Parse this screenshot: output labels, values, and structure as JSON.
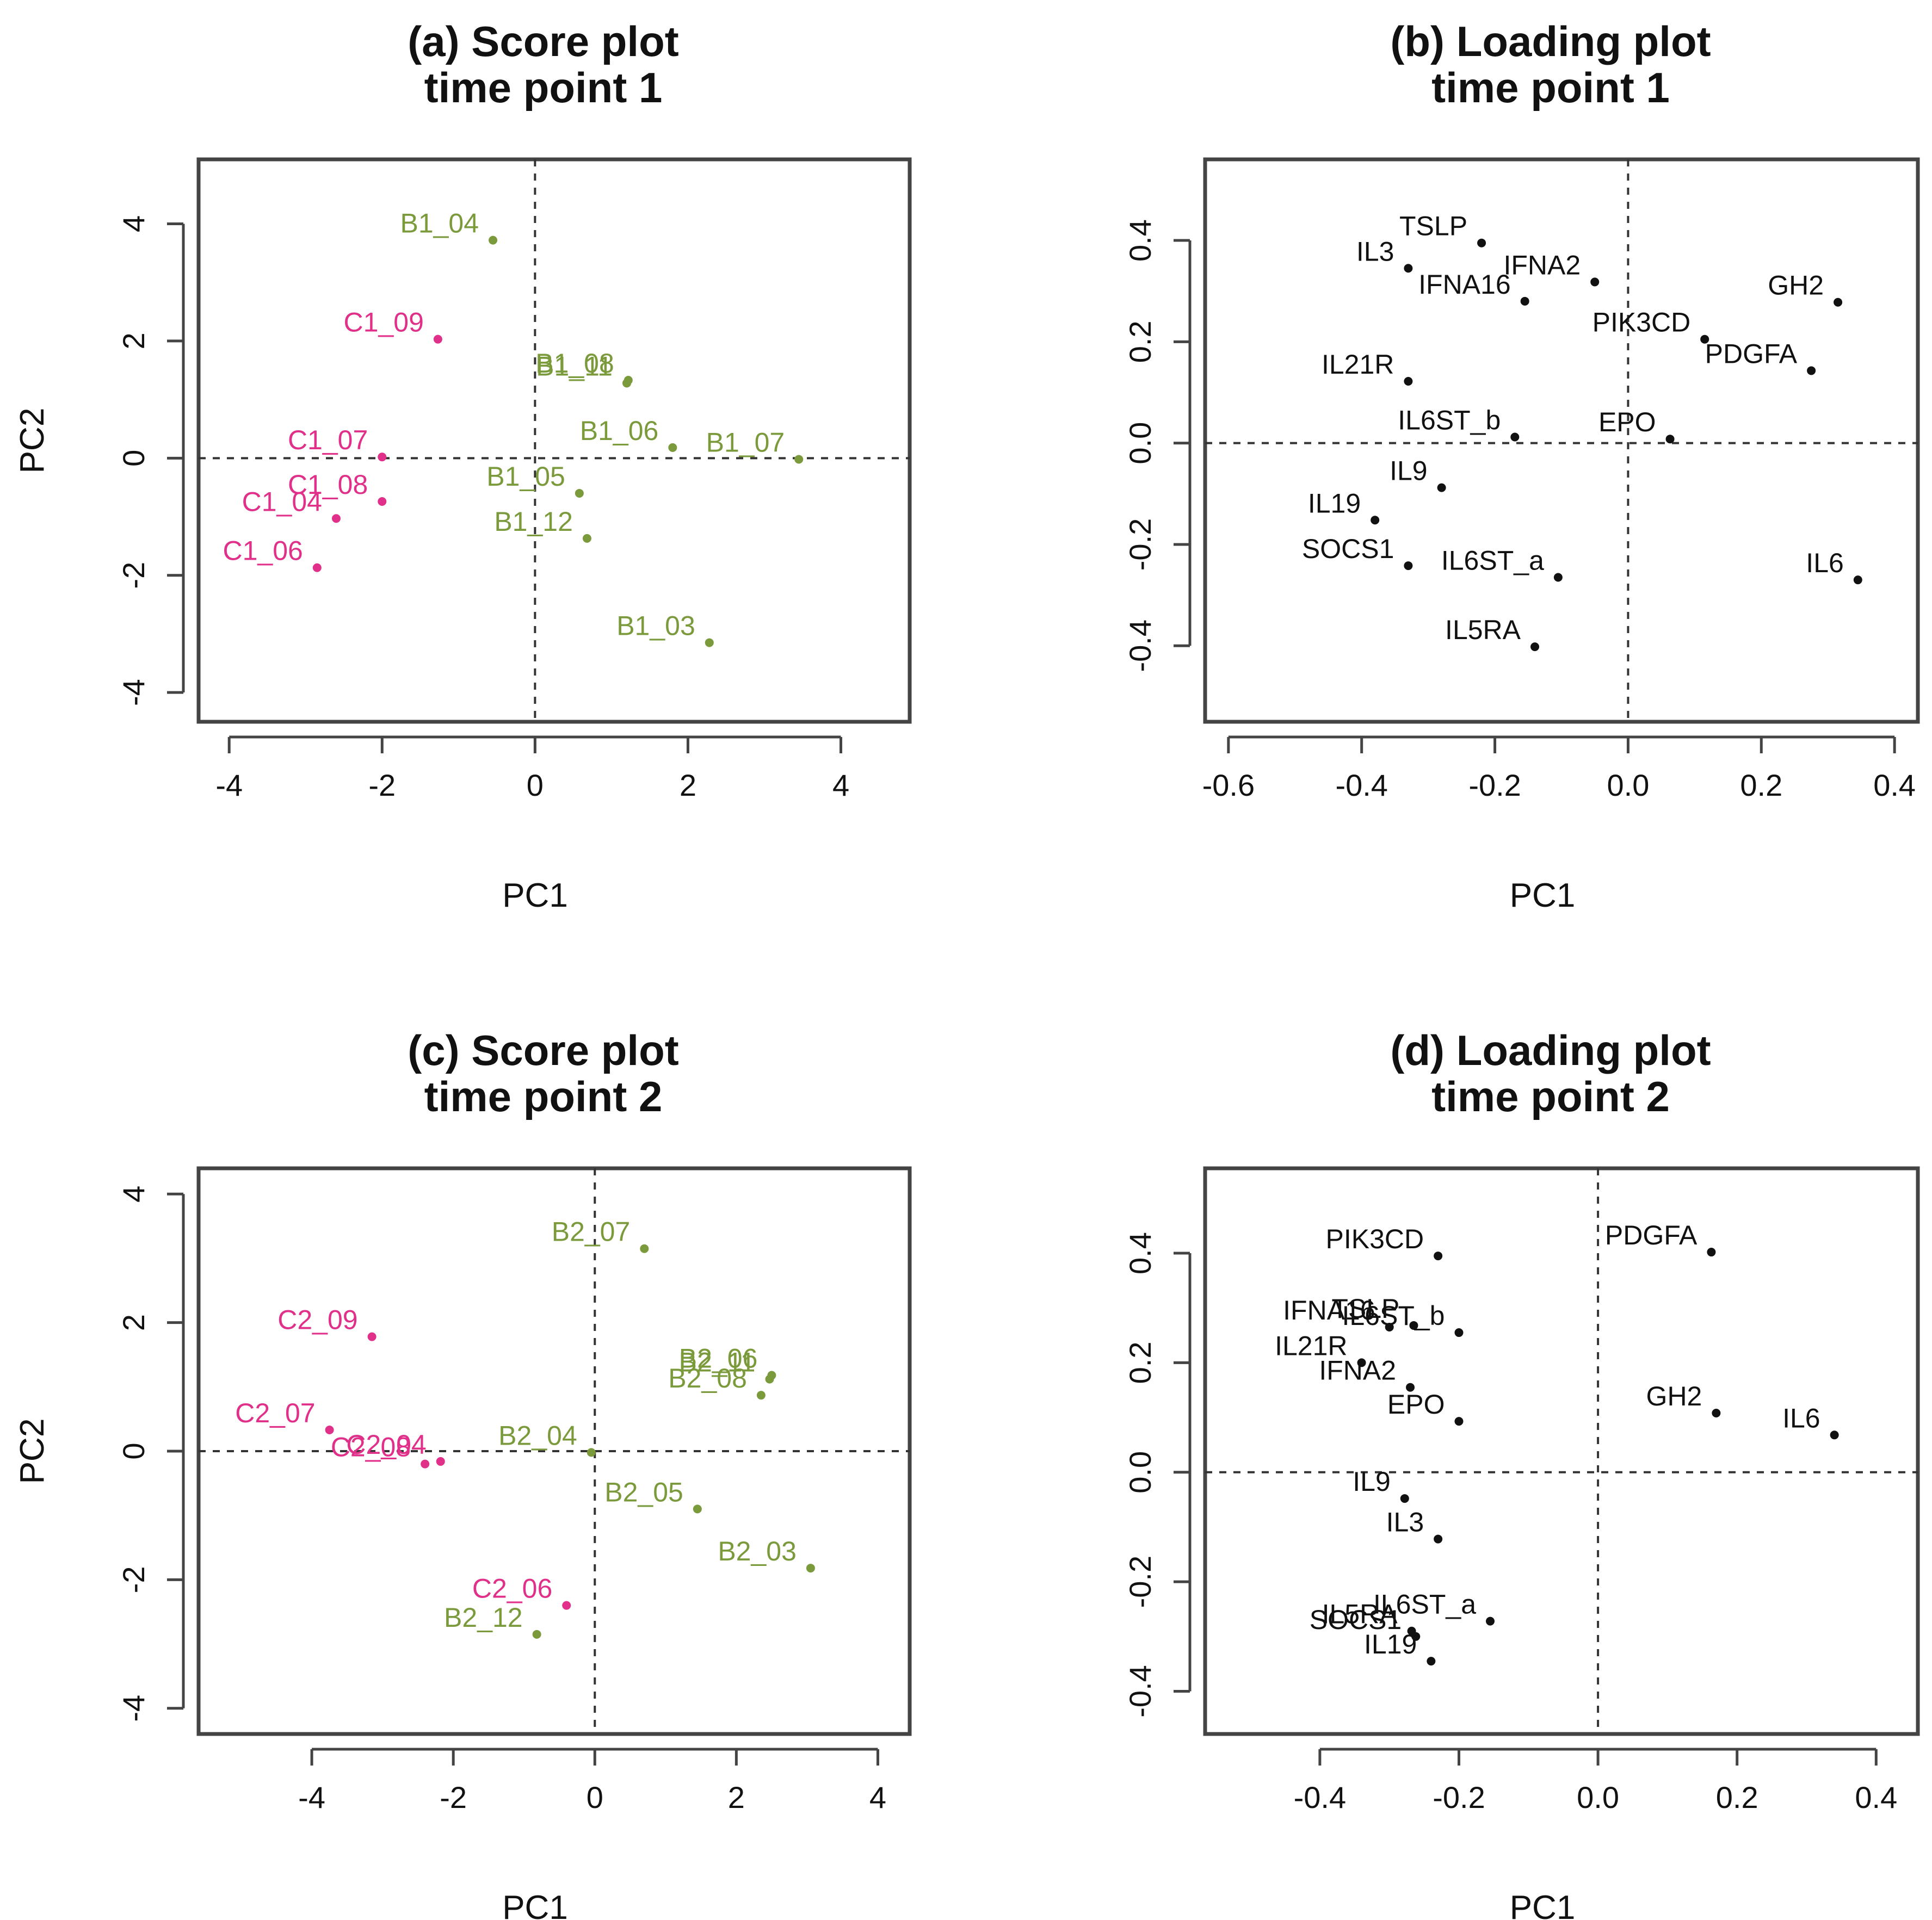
{
  "chart_data": [
    {
      "id": "a",
      "type": "scatter",
      "title": [
        "(a) Score plot",
        "time point 1"
      ],
      "xlabel": "PC1",
      "ylabel": "PC2",
      "xlim": [
        -4.4,
        4.9
      ],
      "ylim": [
        -4.5,
        5.1
      ],
      "xticks": [
        -4,
        -2,
        0,
        2,
        4
      ],
      "xtick_labels": [
        "-4",
        "-2",
        "0",
        "2",
        "4"
      ],
      "yticks": [
        -4,
        -2,
        0,
        2,
        4
      ],
      "ytick_labels": [
        "-4",
        "-2",
        "0",
        "2",
        "4"
      ],
      "reference_lines": {
        "x": 0,
        "y": 0
      },
      "points": [
        {
          "label": "B1_04",
          "x": -0.55,
          "y": 3.72,
          "group": "B"
        },
        {
          "label": "C1_09",
          "x": -1.27,
          "y": 2.03,
          "group": "C"
        },
        {
          "label": "B1_08",
          "x": 1.22,
          "y": 1.33,
          "group": "B"
        },
        {
          "label": "B1_11",
          "x": 1.2,
          "y": 1.28,
          "group": "B"
        },
        {
          "label": "C1_07",
          "x": -2.0,
          "y": 0.02,
          "group": "C"
        },
        {
          "label": "B1_06",
          "x": 1.8,
          "y": 0.18,
          "group": "B"
        },
        {
          "label": "B1_07",
          "x": 3.45,
          "y": -0.02,
          "group": "B"
        },
        {
          "label": "C1_08",
          "x": -2.0,
          "y": -0.74,
          "group": "C"
        },
        {
          "label": "B1_05",
          "x": 0.58,
          "y": -0.6,
          "group": "B"
        },
        {
          "label": "C1_04",
          "x": -2.6,
          "y": -1.03,
          "group": "C"
        },
        {
          "label": "B1_12",
          "x": 0.68,
          "y": -1.37,
          "group": "B"
        },
        {
          "label": "C1_06",
          "x": -2.85,
          "y": -1.87,
          "group": "C"
        },
        {
          "label": "B1_03",
          "x": 2.28,
          "y": -3.15,
          "group": "B"
        }
      ]
    },
    {
      "id": "b",
      "type": "scatter",
      "title": [
        "(b) Loading plot",
        "time point 1"
      ],
      "xlabel": "PC1",
      "ylabel": "PC2",
      "xlim": [
        -0.635,
        0.435
      ],
      "ylim": [
        -0.55,
        0.56
      ],
      "xticks": [
        -0.6,
        -0.4,
        -0.2,
        0.0,
        0.2,
        0.4
      ],
      "xtick_labels": [
        "-0.6",
        "-0.4",
        "-0.2",
        "0.0",
        "0.2",
        "0.4"
      ],
      "yticks": [
        -0.4,
        -0.2,
        0.0,
        0.2,
        0.4
      ],
      "ytick_labels": [
        "-0.4",
        "-0.2",
        "0.0",
        "0.2",
        "0.4"
      ],
      "reference_lines": {
        "x": 0,
        "y": 0
      },
      "points": [
        {
          "label": "TSLP",
          "x": -0.22,
          "y": 0.395,
          "group": "L"
        },
        {
          "label": "IL3",
          "x": -0.33,
          "y": 0.345,
          "group": "L"
        },
        {
          "label": "IFNA2",
          "x": -0.05,
          "y": 0.318,
          "group": "L"
        },
        {
          "label": "IFNA16",
          "x": -0.155,
          "y": 0.28,
          "group": "L"
        },
        {
          "label": "GH2",
          "x": 0.315,
          "y": 0.278,
          "group": "L"
        },
        {
          "label": "PIK3CD",
          "x": 0.115,
          "y": 0.205,
          "group": "L"
        },
        {
          "label": "PDGFA",
          "x": 0.275,
          "y": 0.143,
          "group": "L"
        },
        {
          "label": "IL21R",
          "x": -0.33,
          "y": 0.122,
          "group": "L"
        },
        {
          "label": "IL6ST_b",
          "x": -0.17,
          "y": 0.012,
          "group": "L"
        },
        {
          "label": "EPO",
          "x": 0.063,
          "y": 0.008,
          "group": "L"
        },
        {
          "label": "IL9",
          "x": -0.28,
          "y": -0.088,
          "group": "L"
        },
        {
          "label": "IL19",
          "x": -0.38,
          "y": -0.152,
          "group": "L"
        },
        {
          "label": "SOCS1",
          "x": -0.33,
          "y": -0.242,
          "group": "L"
        },
        {
          "label": "IL6ST_a",
          "x": -0.105,
          "y": -0.265,
          "group": "L"
        },
        {
          "label": "IL6",
          "x": 0.345,
          "y": -0.27,
          "group": "L"
        },
        {
          "label": "IL5RA",
          "x": -0.14,
          "y": -0.402,
          "group": "L"
        }
      ]
    },
    {
      "id": "c",
      "type": "scatter",
      "title": [
        "(c) Score plot",
        "time point 2"
      ],
      "xlabel": "PC1",
      "ylabel": "PC2",
      "xlim": [
        -5.6,
        4.45
      ],
      "ylim": [
        -4.4,
        4.4
      ],
      "xticks": [
        -4,
        -2,
        0,
        2,
        4
      ],
      "xtick_labels": [
        "-4",
        "-2",
        "0",
        "2",
        "4"
      ],
      "yticks": [
        -4,
        -2,
        0,
        2,
        4
      ],
      "ytick_labels": [
        "-4",
        "-2",
        "0",
        "2",
        "4"
      ],
      "reference_lines": {
        "x": 0,
        "y": 0
      },
      "points": [
        {
          "label": "B2_07",
          "x": 0.7,
          "y": 3.15,
          "group": "B"
        },
        {
          "label": "C2_09",
          "x": -3.15,
          "y": 1.78,
          "group": "C"
        },
        {
          "label": "B2_06",
          "x": 2.5,
          "y": 1.18,
          "group": "B"
        },
        {
          "label": "B2_11",
          "x": 2.47,
          "y": 1.12,
          "group": "B"
        },
        {
          "label": "B2_08",
          "x": 2.35,
          "y": 0.87,
          "group": "B"
        },
        {
          "label": "C2_07",
          "x": -3.75,
          "y": 0.33,
          "group": "C"
        },
        {
          "label": "C2_04",
          "x": -2.18,
          "y": -0.16,
          "group": "C"
        },
        {
          "label": "B2_04",
          "x": -0.05,
          "y": -0.02,
          "group": "B"
        },
        {
          "label": "C2_08",
          "x": -2.4,
          "y": -0.2,
          "group": "C"
        },
        {
          "label": "B2_05",
          "x": 1.45,
          "y": -0.9,
          "group": "B"
        },
        {
          "label": "B2_03",
          "x": 3.05,
          "y": -1.82,
          "group": "B"
        },
        {
          "label": "C2_06",
          "x": -0.4,
          "y": -2.4,
          "group": "C"
        },
        {
          "label": "B2_12",
          "x": -0.82,
          "y": -2.85,
          "group": "B"
        }
      ]
    },
    {
      "id": "d",
      "type": "scatter",
      "title": [
        "(d) Loading plot",
        "time point 2"
      ],
      "xlabel": "PC1",
      "ylabel": "PC2",
      "xlim": [
        -0.565,
        0.46
      ],
      "ylim": [
        -0.478,
        0.555
      ],
      "xticks": [
        -0.4,
        -0.2,
        0.0,
        0.2,
        0.4
      ],
      "xtick_labels": [
        "-0.4",
        "-0.2",
        "0.0",
        "0.2",
        "0.4"
      ],
      "yticks": [
        -0.4,
        -0.2,
        0.0,
        0.2,
        0.4
      ],
      "ytick_labels": [
        "-0.4",
        "-0.2",
        "0.0",
        "0.2",
        "0.4"
      ],
      "reference_lines": {
        "x": 0,
        "y": 0
      },
      "points": [
        {
          "label": "PIK3CD",
          "x": -0.23,
          "y": 0.395,
          "group": "L"
        },
        {
          "label": "PDGFA",
          "x": 0.163,
          "y": 0.402,
          "group": "L"
        },
        {
          "label": "TSLP",
          "x": -0.265,
          "y": 0.268,
          "group": "L"
        },
        {
          "label": "IL6ST_b",
          "x": -0.2,
          "y": 0.255,
          "group": "L"
        },
        {
          "label": "IFNA16",
          "x": -0.3,
          "y": 0.265,
          "group": "L"
        },
        {
          "label": "IL21R",
          "x": -0.34,
          "y": 0.2,
          "group": "L"
        },
        {
          "label": "IFNA2",
          "x": -0.27,
          "y": 0.155,
          "group": "L"
        },
        {
          "label": "GH2",
          "x": 0.17,
          "y": 0.108,
          "group": "L"
        },
        {
          "label": "EPO",
          "x": -0.2,
          "y": 0.093,
          "group": "L"
        },
        {
          "label": "IL6",
          "x": 0.34,
          "y": 0.068,
          "group": "L"
        },
        {
          "label": "IL9",
          "x": -0.278,
          "y": -0.048,
          "group": "L"
        },
        {
          "label": "IL3",
          "x": -0.23,
          "y": -0.122,
          "group": "L"
        },
        {
          "label": "IL6ST_a",
          "x": -0.155,
          "y": -0.272,
          "group": "L"
        },
        {
          "label": "IL5RA",
          "x": -0.268,
          "y": -0.29,
          "group": "L"
        },
        {
          "label": "SOCS1",
          "x": -0.262,
          "y": -0.3,
          "group": "L"
        },
        {
          "label": "IL19",
          "x": -0.24,
          "y": -0.345,
          "group": "L"
        }
      ]
    }
  ],
  "colors": {
    "B": "#7a9a3c",
    "C": "#e0308a",
    "L": "#111111",
    "frame": "#444444",
    "text": "#111111"
  }
}
